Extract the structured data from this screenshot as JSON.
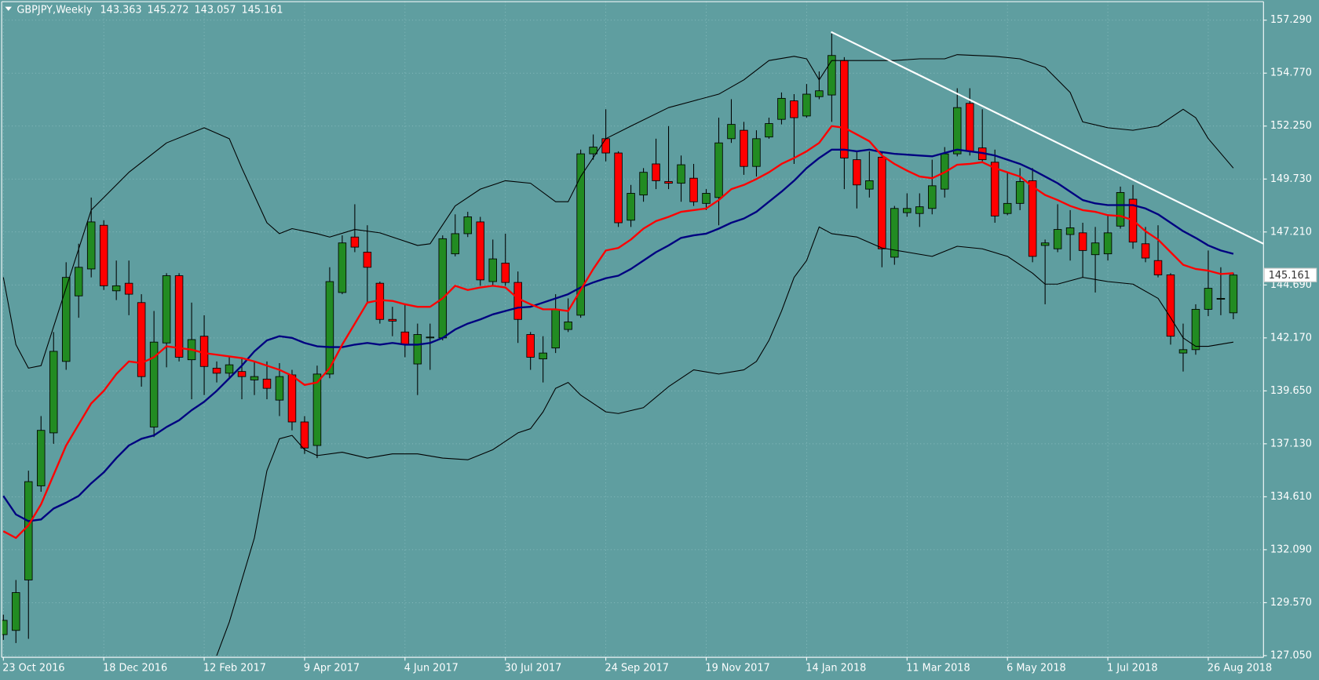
{
  "chart_data": {
    "type": "candlestick",
    "title": "GBPJPY,Weekly",
    "background": "#5f9ea0",
    "up_color": "#228b22",
    "down_color": "#ff0000",
    "grid": true,
    "xlim": [
      -0.134,
      100.4
    ],
    "ylim": [
      126.97,
      158.17
    ],
    "yticks": [
      {
        "value": 157.29,
        "label": "157.290"
      },
      {
        "value": 154.77,
        "label": "154.770"
      },
      {
        "value": 152.25,
        "label": "152.250"
      },
      {
        "value": 149.73,
        "label": "149.730"
      },
      {
        "value": 147.21,
        "label": "147.210"
      },
      {
        "value": 144.69,
        "label": "144.690"
      },
      {
        "value": 142.17,
        "label": "142.170"
      },
      {
        "value": 139.65,
        "label": "139.650"
      },
      {
        "value": 137.13,
        "label": "137.130"
      },
      {
        "value": 134.61,
        "label": "134.610"
      },
      {
        "value": 132.09,
        "label": "132.090"
      },
      {
        "value": 129.57,
        "label": "129.570"
      },
      {
        "value": 127.05,
        "label": "127.050"
      }
    ],
    "categories": [
      "23 Oct 2016",
      null,
      null,
      null,
      null,
      null,
      null,
      null,
      "18 Dec 2016",
      null,
      null,
      null,
      null,
      null,
      null,
      null,
      "12 Feb 2017",
      null,
      null,
      null,
      null,
      null,
      null,
      null,
      "9 Apr 2017",
      null,
      null,
      null,
      null,
      null,
      null,
      null,
      "4 Jun 2017",
      null,
      null,
      null,
      null,
      null,
      null,
      null,
      "30 Jul 2017",
      null,
      null,
      null,
      null,
      null,
      null,
      null,
      "24 Sep 2017",
      null,
      null,
      null,
      null,
      null,
      null,
      null,
      "19 Nov 2017",
      null,
      null,
      null,
      null,
      null,
      null,
      null,
      "14 Jan 2018",
      null,
      null,
      null,
      null,
      null,
      null,
      null,
      "11 Mar 2018",
      null,
      null,
      null,
      null,
      null,
      null,
      null,
      "6 May 2018",
      null,
      null,
      null,
      null,
      null,
      null,
      null,
      "1 Jul 2018",
      null,
      null,
      null,
      null,
      null,
      null,
      null,
      "26 Aug 2018",
      null,
      null
    ],
    "open": [
      128.05,
      128.25,
      130.65,
      135.13,
      137.65,
      141.05,
      144.17,
      145.45,
      147.53,
      144.41,
      144.77,
      143.85,
      137.93,
      141.93,
      145.13,
      141.13,
      142.25,
      140.73,
      140.49,
      140.57,
      140.17,
      140.21,
      139.21,
      140.41,
      138.17,
      137.05,
      140.45,
      144.33,
      146.97,
      146.25,
      144.77,
      143.05,
      142.45,
      140.93,
      142.17,
      142.17,
      146.17,
      147.13,
      147.69,
      144.85,
      145.73,
      144.81,
      142.33,
      141.17,
      141.69,
      142.57,
      143.25,
      150.93,
      151.65,
      150.97,
      147.77,
      148.97,
      150.45,
      149.61,
      149.53,
      149.77,
      148.57,
      148.85,
      151.65,
      152.05,
      150.33,
      151.73,
      152.57,
      153.45,
      152.73,
      153.65,
      153.73,
      155.37,
      150.65,
      149.25,
      150.77,
      146.01,
      148.13,
      148.09,
      148.33,
      149.25,
      150.93,
      153.33,
      151.21,
      150.53,
      148.09,
      148.57,
      149.65,
      146.57,
      146.41,
      147.09,
      147.17,
      146.13,
      146.17,
      147.49,
      148.77,
      146.65,
      145.85,
      145.17,
      141.45,
      141.61,
      143.53,
      144.01,
      143.363
    ],
    "high": [
      129,
      130.65,
      135.85,
      138.45,
      142.45,
      145.77,
      146.65,
      148.85,
      147.77,
      145.85,
      145.85,
      144.25,
      143.45,
      145.25,
      145.25,
      143.85,
      143.25,
      141.05,
      141.25,
      141.25,
      141.05,
      141.05,
      140.97,
      140.65,
      138.45,
      140.85,
      145.53,
      147.05,
      148.53,
      147.53,
      144.85,
      143.65,
      143.77,
      142.85,
      142.85,
      147.05,
      148.05,
      148.17,
      147.93,
      146.85,
      147.13,
      145.33,
      142.45,
      142.25,
      144.25,
      144.05,
      151.13,
      151.85,
      153.05,
      151.05,
      149.45,
      150.25,
      151.65,
      152.25,
      150.85,
      150.45,
      149.25,
      152.65,
      153.53,
      152.45,
      152.05,
      152.65,
      153.85,
      153.77,
      154.25,
      154.85,
      156.65,
      155.53,
      151.05,
      151.05,
      151.05,
      148.45,
      149.05,
      149.05,
      150.65,
      151.25,
      154.05,
      154.05,
      153.05,
      151.13,
      150.05,
      150.25,
      150.25,
      146.85,
      148.53,
      148.25,
      147.65,
      147.45,
      148.05,
      149.37,
      149.45,
      147.45,
      147.53,
      145.25,
      142.85,
      143.77,
      146.33,
      145.53,
      145.272
    ],
    "low": [
      127.8,
      127.65,
      127.85,
      134.85,
      137.13,
      140.65,
      143.13,
      145.05,
      144.45,
      143.97,
      143.25,
      139.85,
      137.45,
      140.77,
      141.05,
      139.25,
      139.45,
      140.05,
      140.25,
      139.25,
      139.45,
      139.25,
      138.45,
      137.77,
      136.65,
      136.45,
      140.25,
      144.25,
      146.25,
      143.85,
      142.85,
      142.25,
      141.25,
      139.45,
      140.65,
      142.05,
      146.05,
      146.97,
      144.65,
      144.65,
      144.65,
      141.93,
      140.65,
      140.05,
      141.45,
      142.45,
      143.13,
      150.65,
      150.57,
      147.45,
      147.45,
      148.65,
      149.25,
      149.25,
      148.65,
      148.45,
      148.25,
      147.53,
      151.45,
      149.93,
      149.85,
      151.65,
      152.33,
      150.45,
      152.65,
      153.53,
      152.45,
      149.25,
      148.33,
      148.85,
      145.53,
      145.65,
      147.93,
      147.45,
      148.05,
      148.85,
      150.81,
      150.85,
      150.57,
      147.65,
      148.01,
      148.25,
      145.77,
      143.77,
      146.25,
      145.85,
      145.05,
      144.33,
      145.85,
      147.37,
      146.41,
      145.77,
      145.05,
      141.85,
      140.57,
      141.37,
      143.21,
      143.25,
      143.057
    ],
    "close": [
      128.73,
      130.05,
      135.33,
      137.77,
      141.53,
      145.05,
      145.53,
      147.69,
      144.65,
      144.65,
      144.25,
      140.33,
      141.97,
      145.13,
      141.25,
      142.09,
      140.81,
      140.49,
      140.89,
      140.33,
      140.33,
      139.77,
      140.33,
      138.17,
      136.93,
      140.45,
      144.85,
      146.69,
      146.49,
      145.53,
      143.05,
      142.97,
      141.85,
      142.33,
      142.21,
      146.89,
      147.13,
      147.93,
      144.93,
      145.93,
      144.81,
      143.05,
      141.25,
      141.45,
      143.53,
      142.93,
      150.93,
      151.25,
      150.97,
      147.65,
      149.05,
      150.05,
      149.65,
      149.53,
      150.41,
      148.65,
      149.05,
      151.45,
      152.33,
      150.33,
      151.65,
      152.37,
      153.57,
      152.65,
      153.77,
      153.93,
      155.61,
      150.73,
      149.45,
      149.65,
      146.41,
      148.33,
      148.33,
      148.41,
      149.41,
      150.93,
      153.13,
      151.05,
      150.65,
      147.97,
      148.57,
      149.61,
      146.05,
      146.69,
      147.33,
      147.41,
      146.33,
      146.69,
      147.17,
      149.09,
      146.73,
      145.97,
      145.17,
      142.25,
      141.61,
      143.53,
      144.53,
      144.05,
      145.161
    ],
    "indicators": [
      {
        "color": "#000000",
        "width": 1,
        "x": [
          0,
          1,
          2,
          3,
          7,
          10,
          13,
          16,
          18,
          19,
          21,
          22,
          23,
          25,
          26,
          28,
          30,
          33,
          34,
          36,
          38,
          40,
          42,
          44,
          45,
          46,
          48,
          50,
          53,
          55,
          57,
          59,
          61,
          63,
          64,
          65,
          66,
          68,
          71,
          73,
          75,
          76,
          79,
          81,
          83,
          85,
          86,
          88,
          90,
          92,
          93,
          94,
          95,
          96,
          98
        ],
        "values": [
          145.05,
          141.85,
          140.73,
          140.85,
          148.25,
          150.05,
          151.45,
          152.17,
          151.65,
          150.25,
          147.65,
          147.13,
          147.37,
          147.13,
          146.97,
          147.33,
          147.17,
          146.57,
          146.65,
          148.45,
          149.25,
          149.65,
          149.53,
          148.65,
          148.65,
          149.85,
          151.65,
          152.25,
          153.13,
          153.45,
          153.77,
          154.45,
          155.37,
          155.57,
          155.45,
          154.45,
          155.37,
          155.37,
          155.37,
          155.45,
          155.45,
          155.65,
          155.57,
          155.45,
          155.05,
          153.85,
          152.45,
          152.17,
          152.05,
          152.25,
          152.65,
          153.05,
          152.65,
          151.65,
          150.25
        ]
      },
      {
        "color": "#000000",
        "width": 1,
        "x": [
          17,
          18,
          20,
          21,
          22,
          23,
          24,
          25,
          27,
          29,
          31,
          33,
          35,
          37,
          39,
          41,
          42,
          43,
          44,
          45,
          46,
          48,
          49,
          51,
          53,
          55,
          57,
          59,
          60,
          61,
          62,
          63,
          64,
          65,
          66,
          68,
          70,
          72,
          74,
          76,
          78,
          80,
          82,
          83,
          84,
          86,
          88,
          90,
          92,
          93,
          94,
          95,
          96,
          98
        ],
        "values": [
          127.05,
          128.65,
          132.65,
          135.85,
          137.37,
          137.53,
          136.85,
          136.57,
          136.73,
          136.45,
          136.65,
          136.65,
          136.45,
          136.37,
          136.85,
          137.65,
          137.85,
          138.65,
          139.77,
          140.05,
          139.45,
          138.65,
          138.57,
          138.85,
          139.85,
          140.65,
          140.45,
          140.65,
          141.05,
          142.05,
          143.45,
          145.05,
          145.85,
          147.45,
          147.13,
          146.97,
          146.45,
          146.25,
          146.05,
          146.53,
          146.41,
          146.05,
          145.25,
          144.73,
          144.73,
          145.05,
          144.85,
          144.73,
          144.05,
          143.13,
          142.17,
          141.77,
          141.77,
          141.97
        ]
      },
      {
        "color": "#000080",
        "width": 2.2,
        "values": [
          134.65,
          133.77,
          133.45,
          133.53,
          134.05,
          134.33,
          134.65,
          135.25,
          135.77,
          136.45,
          137.05,
          137.37,
          137.53,
          137.93,
          138.25,
          138.73,
          139.13,
          139.65,
          140.25,
          140.85,
          141.53,
          142.05,
          142.25,
          142.17,
          141.93,
          141.77,
          141.73,
          141.73,
          141.85,
          141.93,
          141.85,
          141.93,
          141.85,
          141.85,
          141.93,
          142.17,
          142.57,
          142.85,
          143.05,
          143.29,
          143.45,
          143.61,
          143.65,
          143.85,
          144.05,
          144.25,
          144.57,
          144.81,
          145.01,
          145.13,
          145.45,
          145.85,
          146.25,
          146.57,
          146.93,
          147.05,
          147.13,
          147.37,
          147.65,
          147.85,
          148.17,
          148.65,
          149.13,
          149.65,
          150.25,
          150.73,
          151.13,
          151.13,
          151.05,
          151.13,
          151.01,
          150.93,
          150.89,
          150.85,
          150.81,
          150.97,
          151.13,
          151.05,
          150.97,
          150.85,
          150.65,
          150.45,
          150.17,
          149.85,
          149.53,
          149.13,
          148.73,
          148.57,
          148.49,
          148.49,
          148.49,
          148.33,
          148.05,
          147.65,
          147.25,
          146.93,
          146.57,
          146.33,
          146.17
        ]
      },
      {
        "color": "#ff0000",
        "width": 2.2,
        "values": [
          132.97,
          132.65,
          133.25,
          134.25,
          135.65,
          137.05,
          138.05,
          139.05,
          139.65,
          140.45,
          141.05,
          140.97,
          141.25,
          141.77,
          141.69,
          141.61,
          141.45,
          141.37,
          141.29,
          141.21,
          141.05,
          140.85,
          140.65,
          140.37,
          139.93,
          140.05,
          140.73,
          141.85,
          142.85,
          143.85,
          143.97,
          143.93,
          143.77,
          143.65,
          143.65,
          144.05,
          144.65,
          144.45,
          144.57,
          144.65,
          144.57,
          144.05,
          143.77,
          143.53,
          143.53,
          143.45,
          144.45,
          145.45,
          146.33,
          146.45,
          146.85,
          147.37,
          147.73,
          147.93,
          148.17,
          148.25,
          148.33,
          148.73,
          149.25,
          149.45,
          149.73,
          150.05,
          150.45,
          150.73,
          151.05,
          151.45,
          152.25,
          152.17,
          151.85,
          151.53,
          150.85,
          150.45,
          150.13,
          149.85,
          149.77,
          150.05,
          150.41,
          150.45,
          150.53,
          150.25,
          150.05,
          149.85,
          149.37,
          148.97,
          148.73,
          148.45,
          148.25,
          148.17,
          148.01,
          147.97,
          147.77,
          147.25,
          146.85,
          146.25,
          145.65,
          145.45,
          145.37,
          145.21,
          145.25
        ]
      }
    ],
    "trendline": {
      "color": "#ffffff",
      "x": [
        65.95,
        100.4
      ],
      "values": [
        156.73,
        146.65
      ]
    }
  }
}
